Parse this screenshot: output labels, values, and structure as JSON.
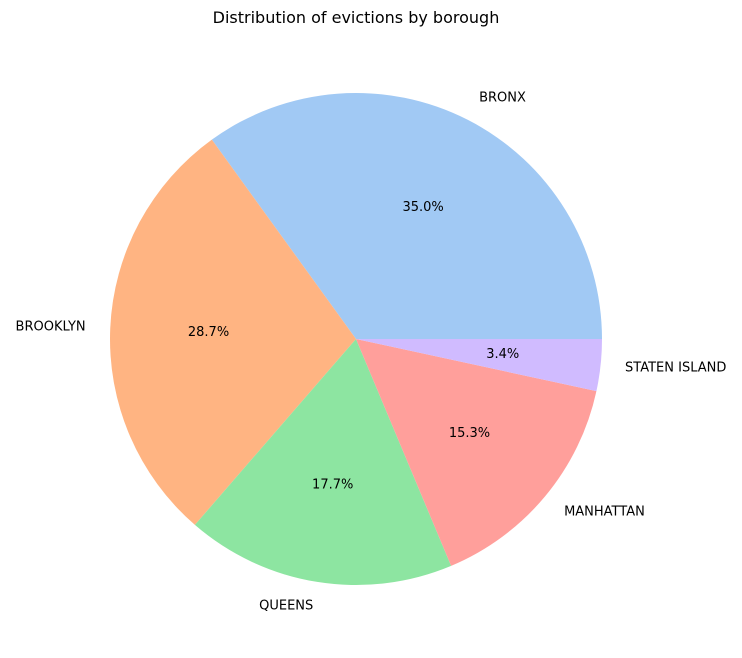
{
  "chart_data": {
    "type": "pie",
    "title": "Distribution of evictions by borough",
    "categories": [
      "BRONX",
      "BROOKLYN",
      "QUEENS",
      "MANHATTAN",
      "STATEN ISLAND"
    ],
    "values": [
      35.0,
      28.7,
      17.7,
      15.3,
      3.4
    ],
    "value_labels": [
      "35.0%",
      "28.7%",
      "17.7%",
      "15.3%",
      "3.4%"
    ],
    "colors": [
      "#a1c9f4",
      "#ffb482",
      "#8de5a1",
      "#ff9f9b",
      "#d0bbff"
    ],
    "start_angle_deg": 0,
    "direction": "counterclockwise",
    "legend": "none"
  }
}
